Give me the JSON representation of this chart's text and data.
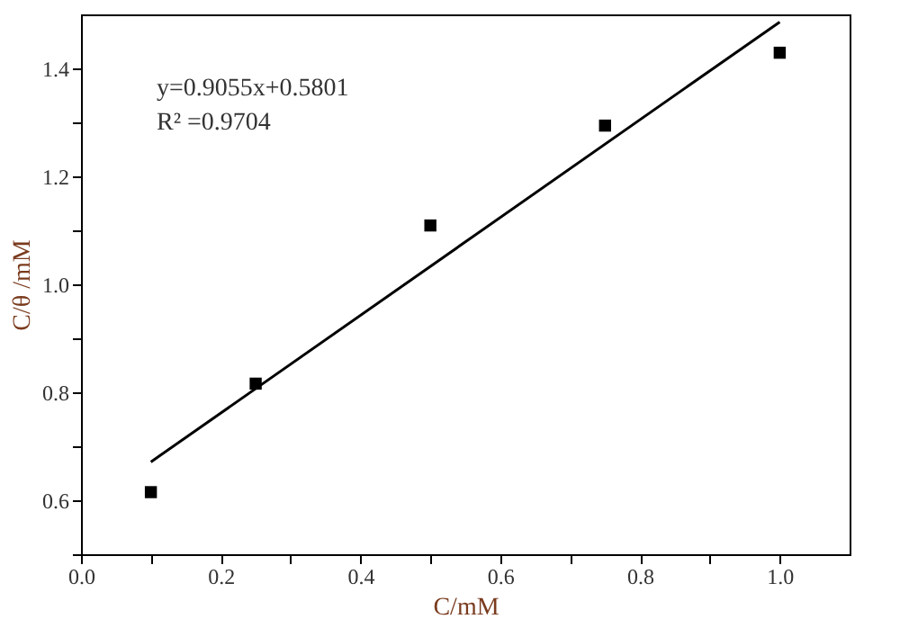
{
  "chart_data": {
    "type": "scatter",
    "xlabel": "C/mM",
    "ylabel": "C/θ /mM",
    "x": [
      0.1,
      0.25,
      0.5,
      0.75,
      1.0
    ],
    "series": [
      {
        "type": "scatter",
        "color": "#000000",
        "marker": "square",
        "values": [
          0.615,
          0.816,
          1.109,
          1.294,
          1.429
        ]
      },
      {
        "type": "line",
        "color": "#000000",
        "marker": "none",
        "line_style": "solid",
        "x": [
          0.1,
          1.0
        ],
        "values": [
          0.671,
          1.486
        ]
      }
    ],
    "annotations": [
      "y=0.9055x+0.5801",
      "R² =0.9704"
    ],
    "xlim": [
      0.0,
      1.1
    ],
    "ylim": [
      0.5,
      1.5
    ],
    "xticks": [
      {
        "value": 0,
        "label": "0.0"
      },
      {
        "value": 0.1,
        "label": null
      },
      0.2,
      {
        "value": 0.3,
        "label": null
      },
      0.4,
      {
        "value": 0.5,
        "label": null
      },
      0.6,
      {
        "value": 0.7,
        "label": null
      },
      0.8,
      {
        "value": 0.9,
        "label": null
      },
      {
        "value": 1,
        "label": "1.0"
      }
    ],
    "yticks": [
      {
        "value": 0.5,
        "label": null
      },
      0.6,
      {
        "value": 0.7,
        "label": null
      },
      0.8,
      {
        "value": 0.9,
        "label": null
      },
      {
        "value": 1,
        "label": "1.0"
      },
      {
        "value": 1.1,
        "label": null
      },
      1.2,
      {
        "value": 1.3,
        "label": null
      },
      1.4
    ],
    "grid": false
  }
}
